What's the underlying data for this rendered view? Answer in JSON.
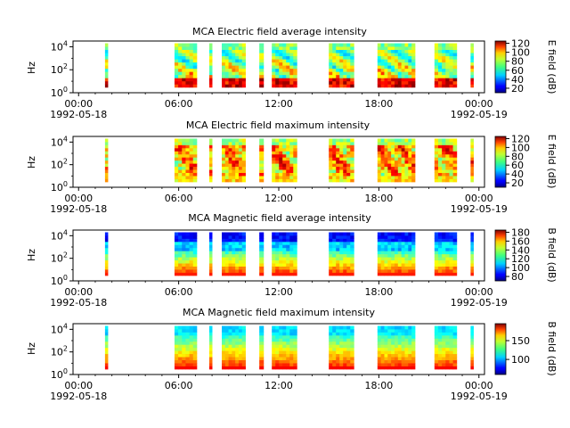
{
  "figure": {
    "panels": [
      {
        "title": "MCA  Electric field average intensity",
        "ylabel": "Hz",
        "cbar_label": "E field (dB)"
      },
      {
        "title": "MCA  Electric field maximum intensity",
        "ylabel": "Hz",
        "cbar_label": "E field (dB)"
      },
      {
        "title": "MCA  Magnetic field average intensity",
        "ylabel": "Hz",
        "cbar_label": "B field (dB)"
      },
      {
        "title": "MCA  Magnetic field maximum intensity",
        "ylabel": "Hz",
        "cbar_label": "B field (dB)"
      }
    ],
    "x_tick_labels": [
      "00:00",
      "06:00",
      "12:00",
      "18:00",
      "00:00"
    ],
    "x_date_labels": [
      "1992-05-18",
      "1992-05-19"
    ]
  },
  "chart_data": [
    {
      "type": "heatmap",
      "title": "MCA  Electric field average intensity",
      "ylabel": "Hz",
      "colorbar_label": "E field (dB)",
      "colorbar_ticks": [
        "20",
        "40",
        "60",
        "80",
        "100",
        "120"
      ],
      "colorbar_range": [
        10,
        125
      ],
      "x_range": [
        "1992-05-18 00:00",
        "1992-05-19 00:00"
      ],
      "xticks": [
        "00:00",
        "06:00",
        "12:00",
        "18:00",
        "00:00"
      ],
      "x_date_labels": [
        "1992-05-18",
        "1992-05-19"
      ],
      "y_scale": "log",
      "y_ticks": [
        "10^0",
        "10^2",
        "10^4"
      ],
      "y_range_hz": [
        1,
        31623
      ],
      "data_intervals": [
        [
          "01:35",
          "01:45"
        ],
        [
          "05:45",
          "07:05"
        ],
        [
          "07:50",
          "08:00"
        ],
        [
          "08:35",
          "10:00"
        ],
        [
          "10:50",
          "11:05"
        ],
        [
          "11:35",
          "13:05"
        ],
        [
          "15:00",
          "16:30"
        ],
        [
          "17:55",
          "20:10"
        ],
        [
          "21:20",
          "22:40"
        ],
        [
          "23:30",
          "23:40"
        ]
      ],
      "colormap": "jet",
      "grid": false
    },
    {
      "type": "heatmap",
      "title": "MCA  Electric field maximum intensity",
      "ylabel": "Hz",
      "colorbar_label": "E field (dB)",
      "colorbar_ticks": [
        "20",
        "40",
        "60",
        "80",
        "100",
        "120"
      ],
      "colorbar_range": [
        10,
        125
      ],
      "x_range": [
        "1992-05-18 00:00",
        "1992-05-19 00:00"
      ],
      "xticks": [
        "00:00",
        "06:00",
        "12:00",
        "18:00",
        "00:00"
      ],
      "x_date_labels": [
        "1992-05-18",
        "1992-05-19"
      ],
      "y_scale": "log",
      "y_ticks": [
        "10^0",
        "10^2",
        "10^4"
      ],
      "y_range_hz": [
        1,
        31623
      ],
      "data_intervals": [
        [
          "01:35",
          "01:45"
        ],
        [
          "05:45",
          "07:05"
        ],
        [
          "07:50",
          "08:00"
        ],
        [
          "08:35",
          "10:00"
        ],
        [
          "10:50",
          "11:05"
        ],
        [
          "11:35",
          "13:05"
        ],
        [
          "15:00",
          "16:30"
        ],
        [
          "17:55",
          "20:10"
        ],
        [
          "21:20",
          "22:40"
        ],
        [
          "23:30",
          "23:40"
        ]
      ],
      "colormap": "jet",
      "grid": false
    },
    {
      "type": "heatmap",
      "title": "MCA  Magnetic field average intensity",
      "ylabel": "Hz",
      "colorbar_label": "B field (dB)",
      "colorbar_ticks": [
        "80",
        "100",
        "120",
        "140",
        "160",
        "180"
      ],
      "colorbar_range": [
        70,
        185
      ],
      "x_range": [
        "1992-05-18 00:00",
        "1992-05-19 00:00"
      ],
      "xticks": [
        "00:00",
        "06:00",
        "12:00",
        "18:00",
        "00:00"
      ],
      "x_date_labels": [
        "1992-05-18",
        "1992-05-19"
      ],
      "y_scale": "log",
      "y_ticks": [
        "10^0",
        "10^2",
        "10^4"
      ],
      "y_range_hz": [
        1,
        31623
      ],
      "data_intervals": [
        [
          "01:35",
          "01:45"
        ],
        [
          "05:45",
          "07:05"
        ],
        [
          "07:50",
          "08:00"
        ],
        [
          "08:35",
          "10:00"
        ],
        [
          "10:50",
          "11:05"
        ],
        [
          "11:35",
          "13:05"
        ],
        [
          "15:00",
          "16:30"
        ],
        [
          "17:55",
          "20:10"
        ],
        [
          "21:20",
          "22:40"
        ],
        [
          "23:30",
          "23:40"
        ]
      ],
      "colormap": "jet",
      "grid": false
    },
    {
      "type": "heatmap",
      "title": "MCA  Magnetic field maximum intensity",
      "ylabel": "Hz",
      "colorbar_label": "B field (dB)",
      "colorbar_ticks": [
        "100",
        "150"
      ],
      "colorbar_range": [
        60,
        195
      ],
      "x_range": [
        "1992-05-18 00:00",
        "1992-05-19 00:00"
      ],
      "xticks": [
        "00:00",
        "06:00",
        "12:00",
        "18:00",
        "00:00"
      ],
      "x_date_labels": [
        "1992-05-18",
        "1992-05-19"
      ],
      "y_scale": "log",
      "y_ticks": [
        "10^0",
        "10^2",
        "10^4"
      ],
      "y_range_hz": [
        1,
        31623
      ],
      "data_intervals": [
        [
          "01:35",
          "01:45"
        ],
        [
          "05:45",
          "07:05"
        ],
        [
          "07:50",
          "08:00"
        ],
        [
          "08:35",
          "10:00"
        ],
        [
          "10:50",
          "11:05"
        ],
        [
          "11:35",
          "13:05"
        ],
        [
          "15:00",
          "16:30"
        ],
        [
          "17:55",
          "20:10"
        ],
        [
          "21:20",
          "22:40"
        ],
        [
          "23:30",
          "23:40"
        ]
      ],
      "colormap": "jet",
      "grid": false
    }
  ]
}
